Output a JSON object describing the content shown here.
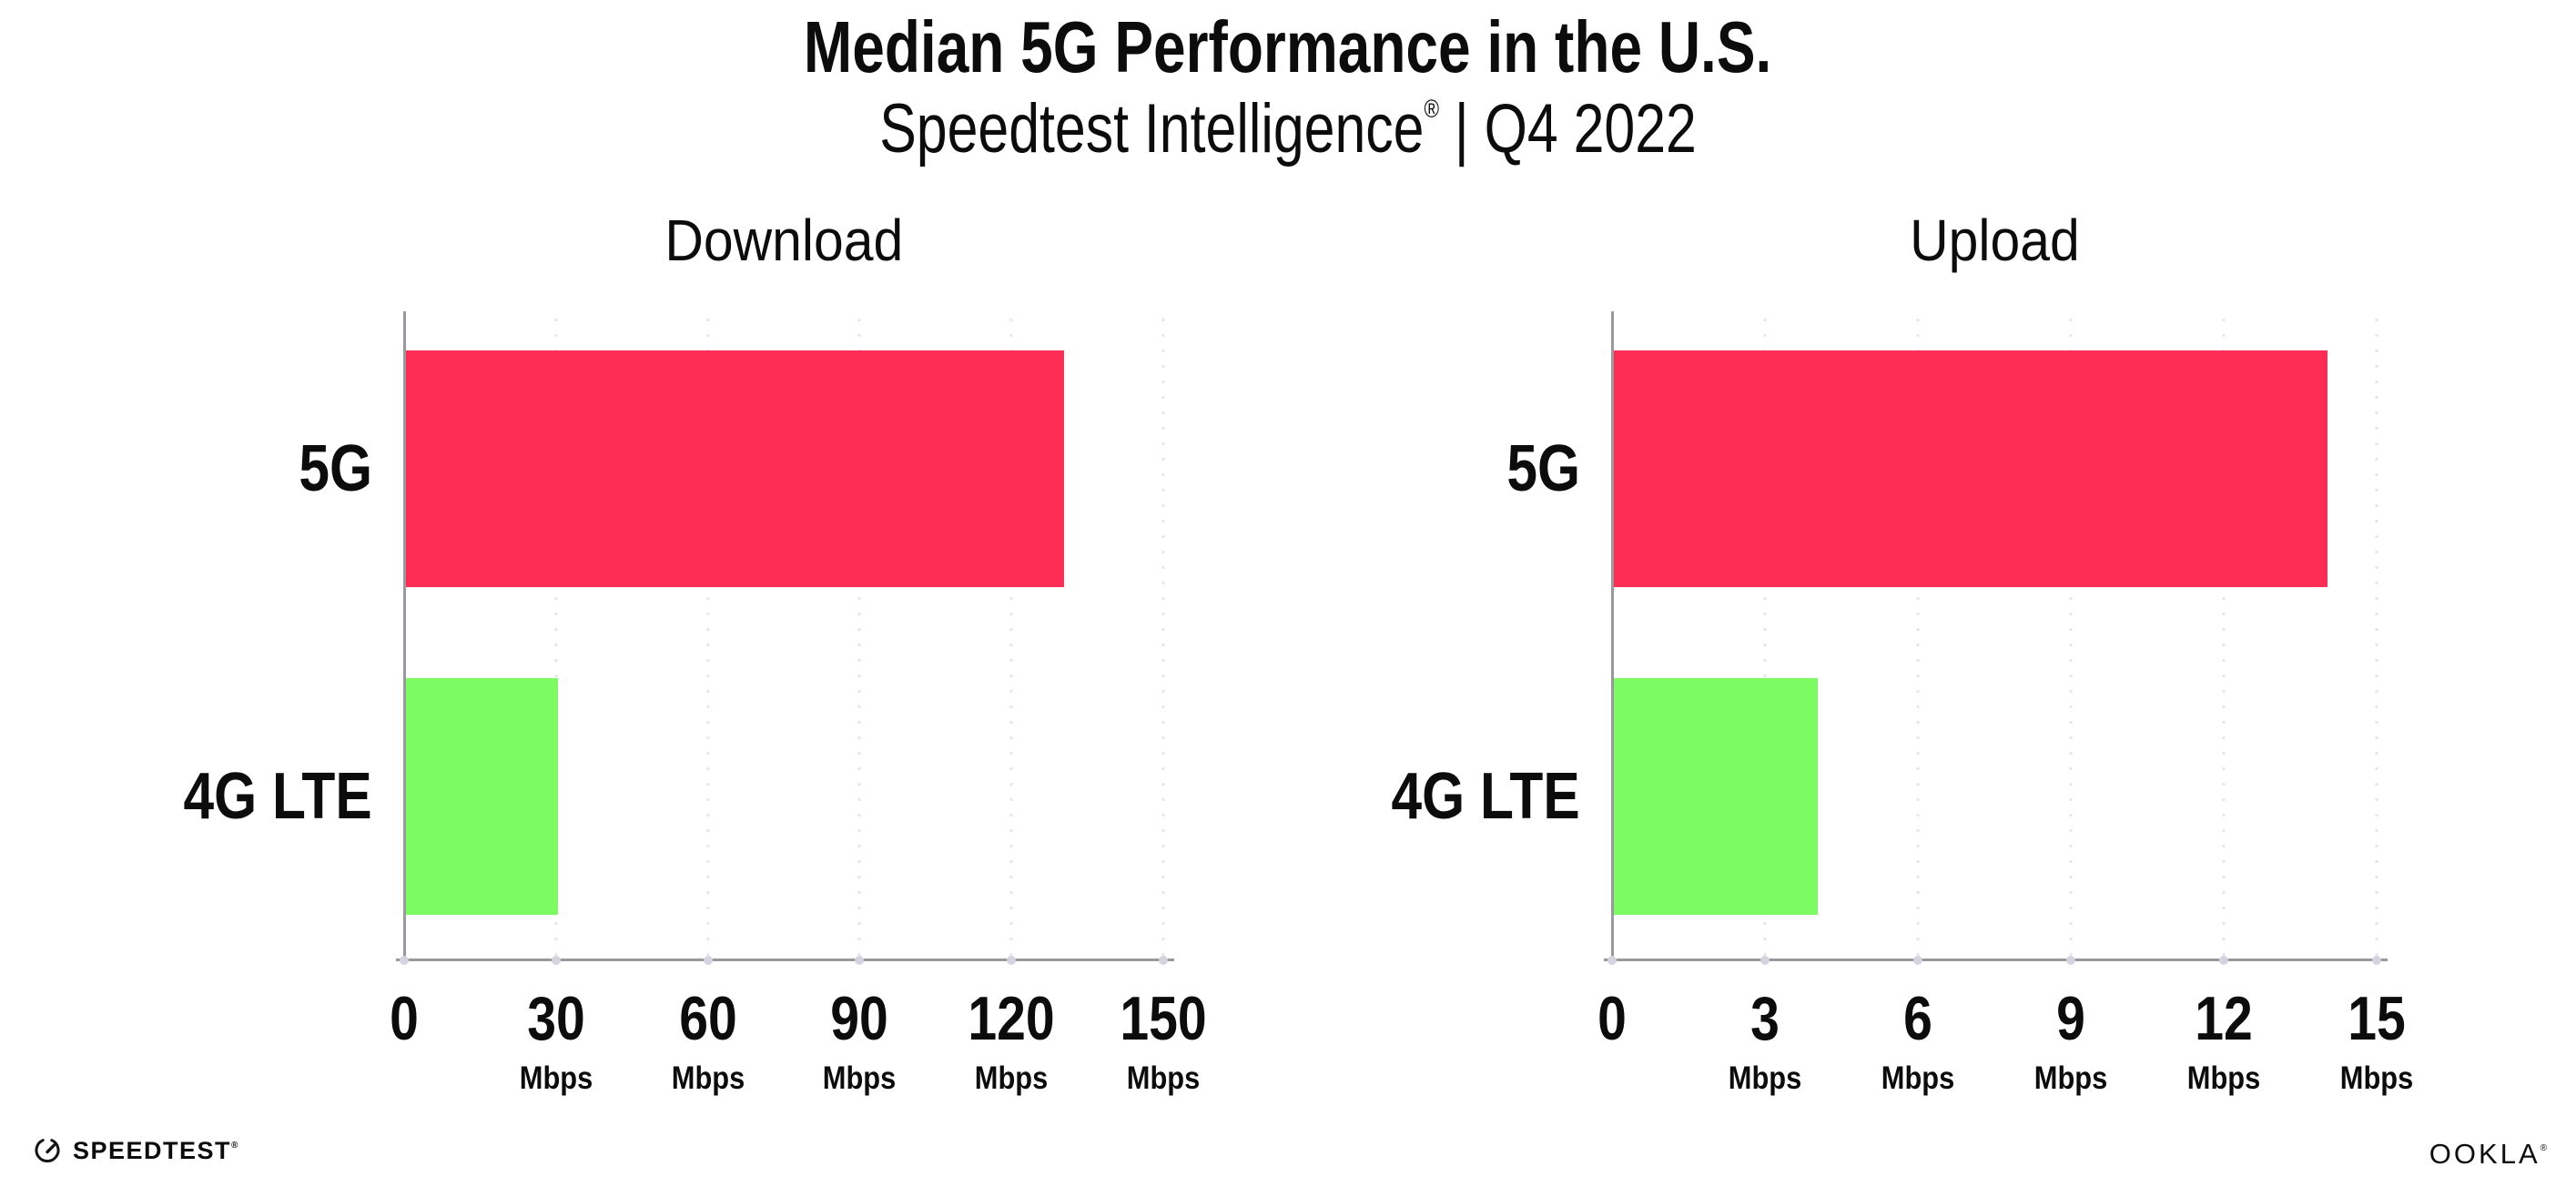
{
  "header": {
    "title": "Median 5G Performance in the U.S.",
    "subtitle_brand": "Speedtest Intelligence",
    "subtitle_registered": "®",
    "subtitle_rest": " | Q4 2022"
  },
  "footer": {
    "speedtest_label": "SPEEDTEST",
    "speedtest_registered": "®",
    "ookla_label": "OOKLA",
    "ookla_registered": "®"
  },
  "colors": {
    "bar_5g": "#fe2d55",
    "bar_4g_lte": "#7dfb63",
    "axis": "#98989d",
    "gridline": "#e6e6ee",
    "tick_dot": "#d4d4e0",
    "text": "#0c0c0c"
  },
  "chart_data": [
    {
      "type": "bar",
      "orientation": "horizontal",
      "title": "Download",
      "categories": [
        "5G",
        "4G LTE"
      ],
      "values": [
        130,
        30
      ],
      "unit": "Mbps",
      "xlim": [
        0,
        150
      ],
      "xticks": [
        0,
        30,
        60,
        90,
        120,
        150
      ],
      "bar_colors": [
        "#fe2d55",
        "#7dfb63"
      ],
      "grid": "dotted-vertical",
      "legend": "none"
    },
    {
      "type": "bar",
      "orientation": "horizontal",
      "title": "Upload",
      "categories": [
        "5G",
        "4G LTE"
      ],
      "values": [
        14,
        4
      ],
      "unit": "Mbps",
      "xlim": [
        0,
        15
      ],
      "xticks": [
        0,
        3,
        6,
        9,
        12,
        15
      ],
      "bar_colors": [
        "#fe2d55",
        "#7dfb63"
      ],
      "grid": "dotted-vertical",
      "legend": "none"
    }
  ]
}
